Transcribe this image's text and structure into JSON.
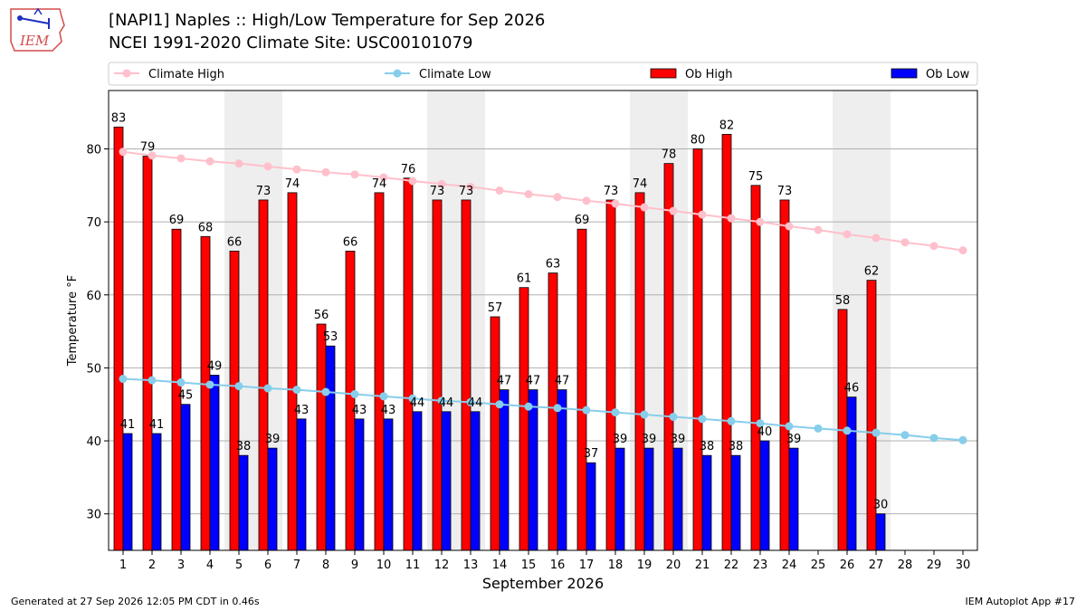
{
  "header": {
    "logo_text": "IEM",
    "title_line1": "[NAPI1] Naples :: High/Low Temperature for Sep 2026",
    "title_line2": "NCEI 1991-2020 Climate Site: USC00101079"
  },
  "footer": {
    "left": "Generated at 27 Sep 2026 12:05 PM CDT in 0.46s",
    "right": "IEM Autoplot App #17"
  },
  "colors": {
    "ob_high": "#ff0000",
    "ob_low": "#0000ff",
    "climate_high": "#ffc0cb",
    "climate_low": "#87ceeb",
    "weekend_shade": "#eeeeee",
    "grid": "#b0b0b0"
  },
  "chart_data": {
    "type": "bar",
    "xlabel": "September 2026",
    "ylabel": "Temperature °F",
    "ylim": [
      25,
      88
    ],
    "yticks": [
      30,
      40,
      50,
      60,
      70,
      80
    ],
    "grid": true,
    "legend_placement": "top",
    "categories": [
      1,
      2,
      3,
      4,
      5,
      6,
      7,
      8,
      9,
      10,
      11,
      12,
      13,
      14,
      15,
      16,
      17,
      18,
      19,
      20,
      21,
      22,
      23,
      24,
      25,
      26,
      27,
      28,
      29,
      30
    ],
    "weekend_days": [
      5,
      6,
      12,
      13,
      19,
      20,
      26,
      27
    ],
    "series": [
      {
        "name": "Climate High",
        "kind": "line",
        "values": [
          79.6,
          79.1,
          78.7,
          78.3,
          78.0,
          77.6,
          77.2,
          76.8,
          76.5,
          76.1,
          75.6,
          75.2,
          74.8,
          74.3,
          73.8,
          73.4,
          72.9,
          72.5,
          72.0,
          71.5,
          71.0,
          70.5,
          70.0,
          69.4,
          68.9,
          68.3,
          67.8,
          67.2,
          66.7,
          66.1
        ]
      },
      {
        "name": "Climate Low",
        "kind": "line",
        "values": [
          48.5,
          48.3,
          48.0,
          47.7,
          47.5,
          47.2,
          47.0,
          46.7,
          46.4,
          46.1,
          45.8,
          45.5,
          45.3,
          45.0,
          44.7,
          44.5,
          44.2,
          43.9,
          43.6,
          43.3,
          43.0,
          42.7,
          42.4,
          42.0,
          41.7,
          41.4,
          41.1,
          40.8,
          40.4,
          40.1
        ]
      },
      {
        "name": "Ob High",
        "kind": "bar",
        "values": [
          83,
          79,
          69,
          68,
          66,
          73,
          74,
          56,
          66,
          74,
          76,
          73,
          73,
          57,
          61,
          63,
          69,
          73,
          74,
          78,
          80,
          82,
          75,
          73,
          null,
          58,
          62,
          null,
          null,
          null
        ]
      },
      {
        "name": "Ob Low",
        "kind": "bar",
        "values": [
          41,
          41,
          45,
          49,
          38,
          39,
          43,
          53,
          43,
          43,
          44,
          44,
          44,
          47,
          47,
          47,
          37,
          39,
          39,
          39,
          38,
          38,
          40,
          39,
          null,
          46,
          30,
          null,
          null,
          null
        ]
      }
    ]
  }
}
